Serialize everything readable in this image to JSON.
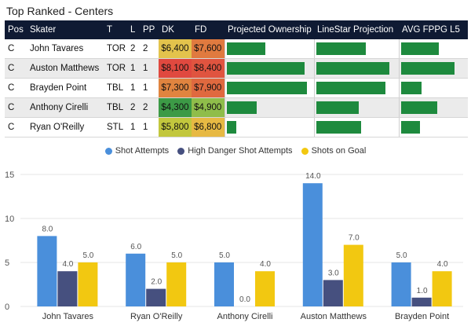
{
  "title": "Top Ranked - Centers",
  "table": {
    "headers": {
      "pos": "Pos",
      "skater": "Skater",
      "team": "T",
      "l": "L",
      "pp": "PP",
      "dk": "DK",
      "fd": "FD",
      "own": "Projected Ownership",
      "proj": "LineStar Projection",
      "avg": "AVG FPPG L5"
    },
    "rows": [
      {
        "pos": "C",
        "skater": "John Tavares",
        "team": "TOR",
        "l": "2",
        "pp": "2",
        "dk": "$6,400",
        "fd": "$7,600",
        "dk_color": "#e3c34c",
        "fd_color": "#e07a3f",
        "own": 0.48,
        "proj": 0.64,
        "avg": 0.6
      },
      {
        "pos": "C",
        "skater": "Auston Matthews",
        "team": "TOR",
        "l": "1",
        "pp": "1",
        "dk": "$8,100",
        "fd": "$8,400",
        "dk_color": "#e0493f",
        "fd_color": "#e0543f",
        "own": 0.97,
        "proj": 0.95,
        "avg": 0.85
      },
      {
        "pos": "C",
        "skater": "Brayden Point",
        "team": "TBL",
        "l": "1",
        "pp": "1",
        "dk": "$7,300",
        "fd": "$7,900",
        "dk_color": "#e0843f",
        "fd_color": "#e0693f",
        "own": 1.25,
        "proj": 0.9,
        "avg": 0.32
      },
      {
        "pos": "C",
        "skater": "Anthony Cirelli",
        "team": "TBL",
        "l": "2",
        "pp": "2",
        "dk": "$4,300",
        "fd": "$4,900",
        "dk_color": "#3c9a46",
        "fd_color": "#8fbd4a",
        "own": 0.37,
        "proj": 0.55,
        "avg": 0.57
      },
      {
        "pos": "C",
        "skater": "Ryan O'Reilly",
        "team": "STL",
        "l": "1",
        "pp": "1",
        "dk": "$5,800",
        "fd": "$6,800",
        "dk_color": "#c2c73d",
        "fd_color": "#e7b943",
        "own": 0.12,
        "proj": 0.58,
        "avg": 0.3
      }
    ]
  },
  "chart_data": {
    "type": "bar",
    "categories": [
      "John Tavares",
      "Ryan O'Reilly",
      "Anthony Cirelli",
      "Auston Matthews",
      "Brayden Point"
    ],
    "series": [
      {
        "name": "Shot Attempts",
        "color": "#4a8fdb",
        "values": [
          8.0,
          6.0,
          5.0,
          14.0,
          5.0
        ]
      },
      {
        "name": "High Danger Shot Attempts",
        "color": "#46507f",
        "values": [
          4.0,
          2.0,
          0.0,
          3.0,
          1.0
        ]
      },
      {
        "name": "Shots on Goal",
        "color": "#f2c811",
        "values": [
          5.0,
          5.0,
          4.0,
          7.0,
          4.0
        ]
      }
    ],
    "ylim": [
      0,
      15
    ],
    "yticks": [
      0,
      5,
      10,
      15
    ],
    "title": "",
    "xlabel": "",
    "ylabel": ""
  }
}
